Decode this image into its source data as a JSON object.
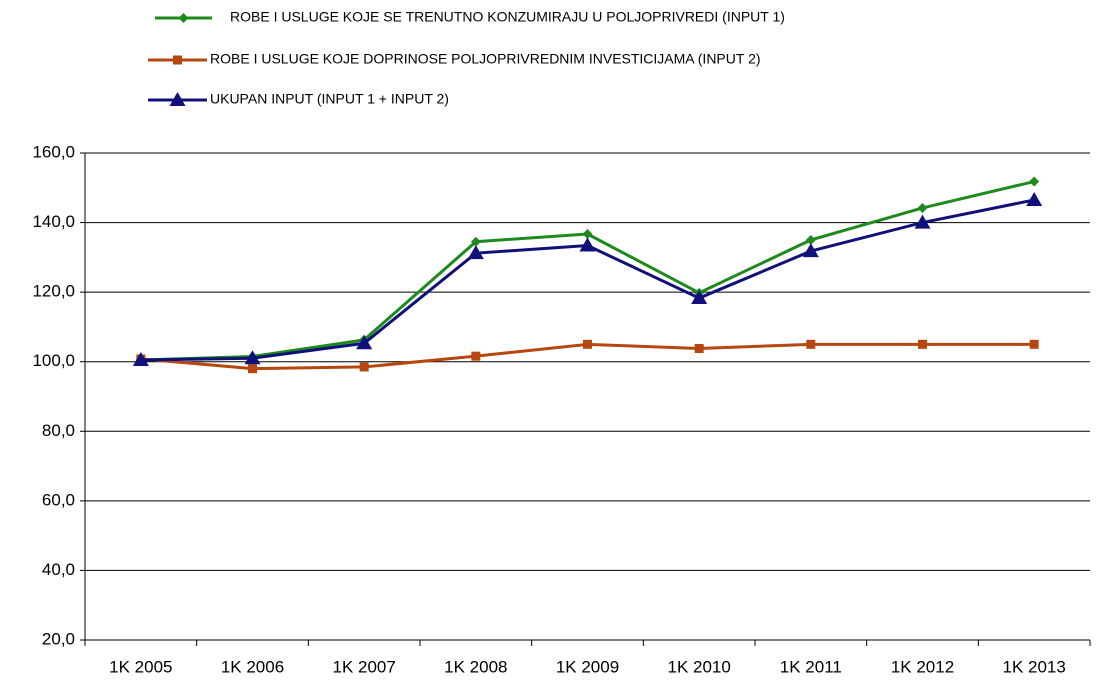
{
  "chart_data": {
    "type": "line",
    "categories": [
      "1K 2005",
      "1K 2006",
      "1K 2007",
      "1K 2008",
      "1K 2009",
      "1K 2010",
      "1K 2011",
      "1K 2012",
      "1K 2013"
    ],
    "series": [
      {
        "name": "ROBE I USLUGE KOJE SE TRENUTNO KONZUMIRAJU U POLJOPRIVREDI (INPUT 1)",
        "color": "#1e8a1e",
        "marker": "diamond",
        "values": [
          100.5,
          101.5,
          106.3,
          134.5,
          136.7,
          119.8,
          135.0,
          144.2,
          151.8
        ]
      },
      {
        "name": "ROBE I USLUGE KOJE DOPRINOSE POLJOPRIVREDNIM INVESTICIJAMA (INPUT 2)",
        "color": "#b5470f",
        "marker": "square",
        "values": [
          100.8,
          98.0,
          98.5,
          101.6,
          105.0,
          103.8,
          105.0,
          105.0,
          105.0
        ]
      },
      {
        "name": "UKUPAN INPUT (INPUT 1 + INPUT 2)",
        "color": "#10107a",
        "marker": "triangle",
        "values": [
          100.5,
          101.0,
          105.3,
          131.2,
          133.4,
          118.3,
          131.8,
          140.0,
          146.5
        ]
      }
    ],
    "ylim": [
      20,
      160
    ],
    "yticks": [
      {
        "value": 20,
        "label": "20,0"
      },
      {
        "value": 40,
        "label": "40,0"
      },
      {
        "value": 60,
        "label": "60,0"
      },
      {
        "value": 80,
        "label": "80,0"
      },
      {
        "value": 100,
        "label": "100,0"
      },
      {
        "value": 120,
        "label": "120,0"
      },
      {
        "value": 140,
        "label": "140,0"
      },
      {
        "value": 160,
        "label": "160,0"
      }
    ],
    "grid": true,
    "legend": "top"
  }
}
